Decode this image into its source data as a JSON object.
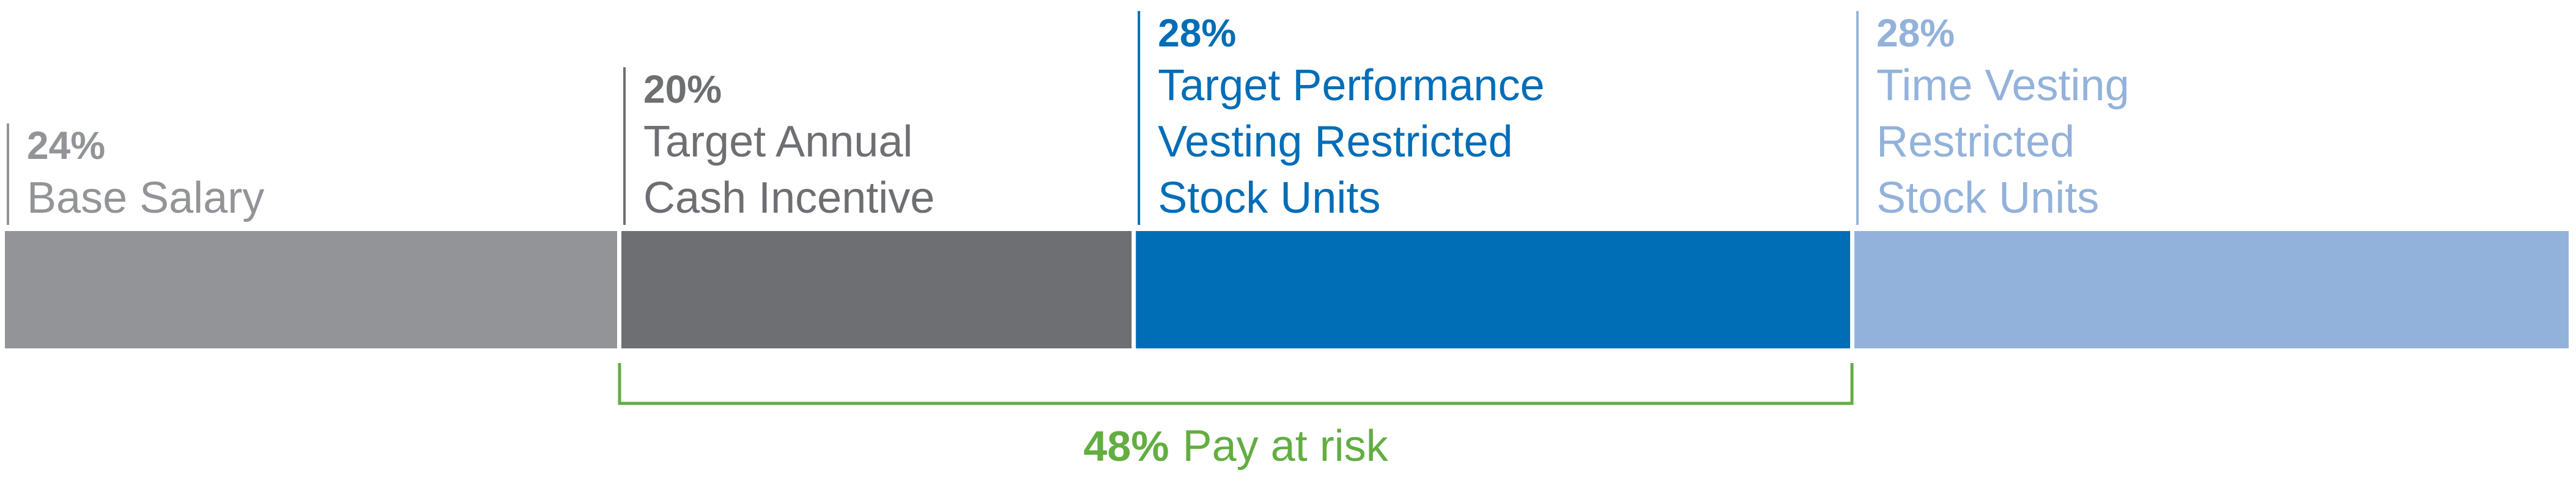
{
  "chart_data": {
    "type": "bar",
    "orientation": "horizontal-stacked",
    "unit": "%",
    "segments": [
      {
        "percent_label": "24%",
        "value": 24,
        "label_lines": [
          "Base Salary"
        ],
        "color": "#939497",
        "text_color": "#939497"
      },
      {
        "percent_label": "20%",
        "value": 20,
        "label_lines": [
          "Target Annual",
          "Cash Incentive"
        ],
        "color": "#6E6F73",
        "text_color": "#6E6F73"
      },
      {
        "percent_label": "28%",
        "value": 28,
        "label_lines": [
          "Target Performance",
          "Vesting Restricted",
          "Stock Units"
        ],
        "color": "#006DB7",
        "text_color": "#006DB7"
      },
      {
        "percent_label": "28%",
        "value": 28,
        "label_lines": [
          "Time Vesting",
          "Restricted",
          "Stock Units"
        ],
        "color": "#93B2DB",
        "text_color": "#93B2DB"
      }
    ],
    "bracket": {
      "percent_label": "48%",
      "label": "Pay at risk",
      "spans_segments": [
        1,
        2
      ],
      "color": "#62AE41"
    }
  }
}
